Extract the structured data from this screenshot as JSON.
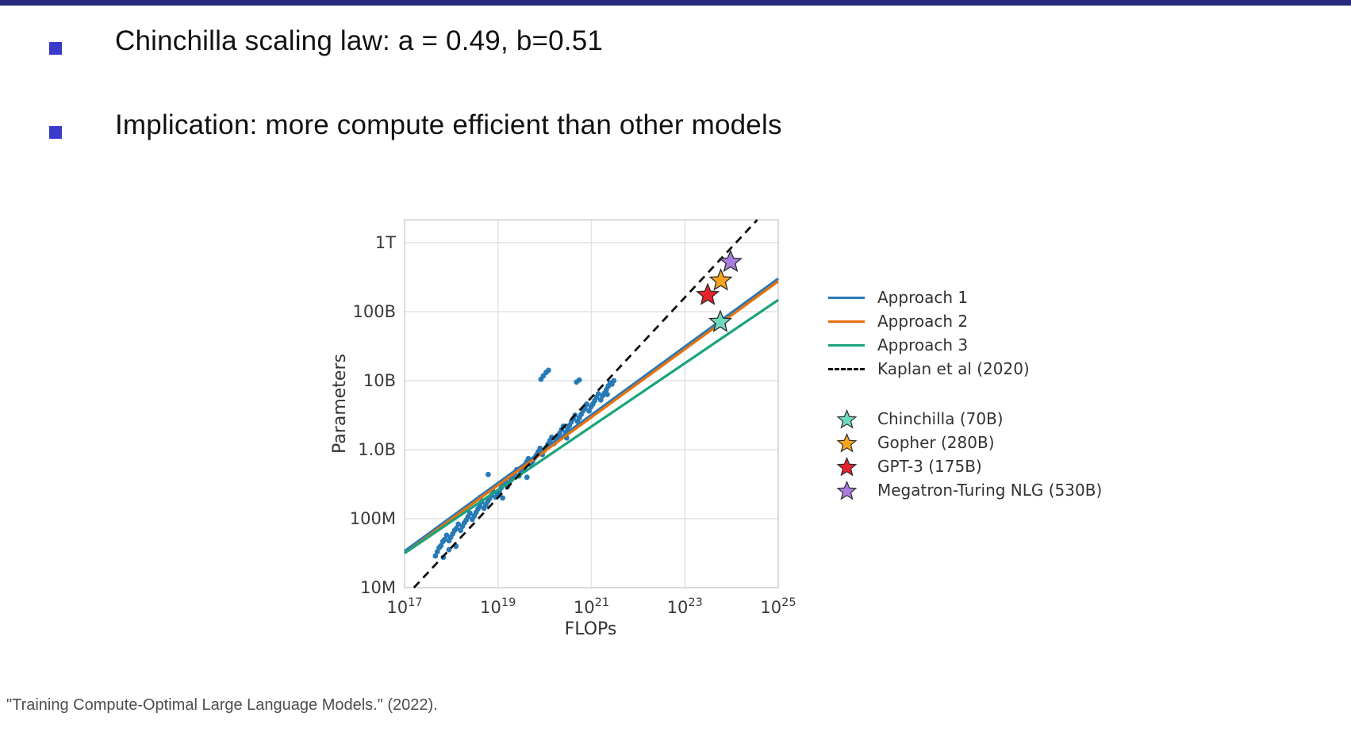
{
  "slide": {
    "accent_bar_color": "#29297e",
    "bullet_color": "#3a3acb",
    "bullets": [
      {
        "text": "Chinchilla scaling law: a = 0.49, b=0.51"
      },
      {
        "text": "Implication: more compute efficient than other models"
      }
    ],
    "footer": "\"Training Compute-Optimal Large Language Models.\"  (2022)."
  },
  "chart_data": {
    "type": "scatter",
    "title": "",
    "xlabel": "FLOPs",
    "ylabel": "Parameters",
    "x_scale": "log",
    "y_scale": "log",
    "xlim_exp": [
      17,
      25
    ],
    "ylim_exp": [
      7,
      12.33
    ],
    "grid": true,
    "legend_position": "right-outside",
    "x_ticks_exp": [
      17,
      19,
      21,
      23,
      25
    ],
    "y_ticks": [
      {
        "label": "1T",
        "log_value": 12
      },
      {
        "label": "100B",
        "log_value": 11
      },
      {
        "label": "10B",
        "log_value": 10
      },
      {
        "label": "1.0B",
        "log_value": 9
      },
      {
        "label": "100M",
        "log_value": 8
      },
      {
        "label": "10M",
        "log_value": 7
      }
    ],
    "grid_x_exp": [
      19,
      21,
      23
    ],
    "grid_y_log": [
      12,
      11,
      10,
      9,
      8
    ],
    "lines": [
      {
        "name": "Approach 1",
        "color": "#2979b9",
        "style": "solid",
        "points_logxy": [
          [
            17,
            7.53
          ],
          [
            25,
            11.48
          ]
        ]
      },
      {
        "name": "Approach 2",
        "color": "#e8710a",
        "style": "solid",
        "points_logxy": [
          [
            17,
            7.5
          ],
          [
            25,
            11.44
          ]
        ]
      },
      {
        "name": "Approach 3",
        "color": "#1aa37c",
        "style": "solid",
        "points_logxy": [
          [
            17,
            7.5
          ],
          [
            25,
            11.17
          ]
        ]
      },
      {
        "name": "Kaplan et al (2020)",
        "color": "#111111",
        "style": "dashed",
        "points_logxy": [
          [
            17.2,
            7.0
          ],
          [
            24.55,
            12.33
          ]
        ]
      }
    ],
    "models": [
      {
        "name": "Chinchilla (70B)",
        "color": "#6fd9bd",
        "flops": 5.8e+23,
        "parameters": 70000000000.0,
        "log_flops": 23.76,
        "log_params": 10.85
      },
      {
        "name": "Gopher (280B)",
        "color": "#f7a51d",
        "flops": 5.8e+23,
        "parameters": 280000000000.0,
        "log_flops": 23.77,
        "log_params": 11.45
      },
      {
        "name": "GPT-3 (175B)",
        "color": "#e8222a",
        "flops": 3.1e+23,
        "parameters": 175000000000.0,
        "log_flops": 23.49,
        "log_params": 11.24
      },
      {
        "name": "Megatron-Turing NLG (530B)",
        "color": "#a97de0",
        "flops": 9.5e+23,
        "parameters": 530000000000.0,
        "log_flops": 23.98,
        "log_params": 11.72
      }
    ],
    "scatter": {
      "name": "training-runs",
      "color": "#2277b5",
      "points_logxy": [
        [
          17.7,
          7.52
        ],
        [
          17.74,
          7.58
        ],
        [
          17.78,
          7.61
        ],
        [
          17.82,
          7.67
        ],
        [
          17.86,
          7.7
        ],
        [
          17.9,
          7.76
        ],
        [
          17.95,
          7.68
        ],
        [
          17.99,
          7.73
        ],
        [
          18.03,
          7.78
        ],
        [
          18.07,
          7.83
        ],
        [
          18.11,
          7.86
        ],
        [
          18.15,
          7.92
        ],
        [
          18.2,
          7.83
        ],
        [
          18.24,
          7.89
        ],
        [
          18.28,
          7.94
        ],
        [
          18.32,
          7.98
        ],
        [
          18.36,
          8.03
        ],
        [
          18.4,
          8.08
        ],
        [
          18.45,
          7.99
        ],
        [
          18.49,
          8.04
        ],
        [
          18.53,
          8.09
        ],
        [
          18.57,
          8.14
        ],
        [
          18.61,
          8.18
        ],
        [
          18.65,
          8.24
        ],
        [
          18.7,
          8.15
        ],
        [
          18.74,
          8.2
        ],
        [
          18.78,
          8.25
        ],
        [
          18.82,
          8.29
        ],
        [
          18.86,
          8.34
        ],
        [
          18.9,
          8.39
        ],
        [
          18.95,
          8.31
        ],
        [
          18.99,
          8.36
        ],
        [
          19.03,
          8.4
        ],
        [
          19.07,
          8.45
        ],
        [
          19.11,
          8.5
        ],
        [
          19.15,
          8.55
        ],
        [
          19.2,
          8.46
        ],
        [
          19.24,
          8.52
        ],
        [
          19.28,
          8.56
        ],
        [
          19.32,
          8.61
        ],
        [
          19.36,
          8.66
        ],
        [
          19.4,
          8.71
        ],
        [
          19.45,
          8.62
        ],
        [
          19.49,
          8.67
        ],
        [
          19.53,
          8.72
        ],
        [
          19.57,
          8.77
        ],
        [
          19.61,
          8.82
        ],
        [
          19.65,
          8.87
        ],
        [
          19.7,
          8.78
        ],
        [
          19.74,
          8.83
        ],
        [
          19.78,
          8.88
        ],
        [
          19.82,
          8.92
        ],
        [
          19.86,
          8.97
        ],
        [
          19.9,
          9.02
        ],
        [
          19.95,
          8.93
        ],
        [
          19.99,
          8.99
        ],
        [
          20.03,
          9.03
        ],
        [
          20.07,
          9.08
        ],
        [
          20.11,
          9.13
        ],
        [
          20.15,
          9.18
        ],
        [
          20.2,
          9.09
        ],
        [
          20.24,
          9.15
        ],
        [
          20.28,
          9.19
        ],
        [
          20.32,
          9.24
        ],
        [
          20.36,
          9.29
        ],
        [
          20.4,
          9.34
        ],
        [
          20.45,
          9.25
        ],
        [
          20.49,
          9.3
        ],
        [
          20.53,
          9.35
        ],
        [
          20.57,
          9.4
        ],
        [
          20.61,
          9.45
        ],
        [
          20.65,
          9.5
        ],
        [
          20.7,
          9.41
        ],
        [
          20.74,
          9.46
        ],
        [
          20.78,
          9.51
        ],
        [
          20.82,
          9.56
        ],
        [
          20.86,
          9.6
        ],
        [
          20.9,
          9.66
        ],
        [
          20.95,
          9.56
        ],
        [
          20.99,
          9.62
        ],
        [
          21.03,
          9.66
        ],
        [
          21.07,
          9.71
        ],
        [
          21.11,
          9.76
        ],
        [
          21.15,
          9.81
        ],
        [
          21.2,
          9.72
        ],
        [
          21.24,
          9.78
        ],
        [
          21.28,
          9.82
        ],
        [
          21.32,
          9.87
        ],
        [
          21.36,
          9.92
        ],
        [
          21.4,
          9.97
        ],
        [
          18.79,
          8.64
        ],
        [
          18.1,
          7.6
        ],
        [
          17.83,
          7.44
        ],
        [
          17.66,
          7.46
        ],
        [
          17.95,
          7.55
        ],
        [
          19.92,
          10.02
        ],
        [
          19.97,
          10.07
        ],
        [
          20.03,
          10.12
        ],
        [
          20.08,
          10.15
        ],
        [
          20.68,
          9.98
        ],
        [
          20.74,
          10.01
        ],
        [
          21.44,
          9.95
        ],
        [
          21.48,
          10.0
        ],
        [
          21.34,
          9.8
        ],
        [
          19.1,
          8.3
        ],
        [
          19.62,
          8.6
        ],
        [
          20.47,
          9.17
        ],
        [
          18.62,
          8.31
        ]
      ]
    }
  }
}
